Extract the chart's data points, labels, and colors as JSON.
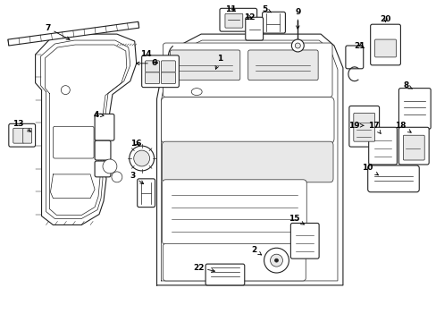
{
  "bg_color": "#ffffff",
  "line_color": "#222222",
  "gray": "#666666",
  "light_gray": "#aaaaaa",
  "fill_gray": "#e8e8e8",
  "lw_main": 1.0,
  "lw_thin": 0.5
}
